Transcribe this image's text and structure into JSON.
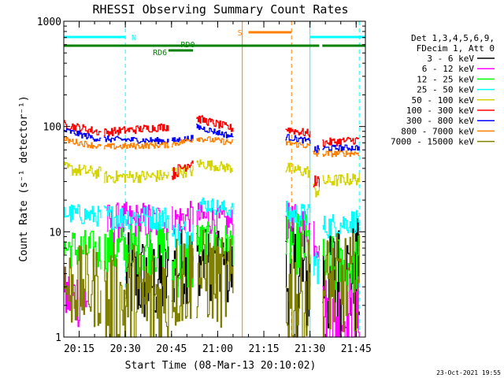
{
  "chart_data": {
    "type": "line",
    "title": "RHESSI Observing Summary Count Rates",
    "xlabel": "Start Time (08-Mar-13 20:10:02)",
    "ylabel": "Count Rate (s⁻¹ detector⁻¹)",
    "y_scale": "log",
    "ylim": [
      1,
      1000
    ],
    "xlim": [
      "20:10",
      "21:48"
    ],
    "x_ticks": [
      "20:15",
      "20:30",
      "20:45",
      "21:00",
      "21:15",
      "21:30",
      "21:45"
    ],
    "y_ticks": [
      "1",
      "10",
      "100",
      "1000"
    ],
    "legend_header": [
      "Det 1,3,4,5,6,9,",
      "FDecim 1, Att 0"
    ],
    "legend_position": "right",
    "footer_date": "23-Oct-2021 19:55",
    "annotations": {
      "N": "N",
      "S": "S",
      "RD0": "RD0",
      "RD6": "RD6"
    },
    "flag_bars": [
      {
        "label": "N",
        "color": "#00ffff",
        "segments": [
          [
            "20:10",
            "20:30"
          ],
          [
            "21:30",
            "21:48"
          ]
        ]
      },
      {
        "label": "S",
        "color": "#ff8000",
        "segments": [
          [
            "21:10",
            "21:24"
          ]
        ]
      },
      {
        "label": "RD0",
        "color": "#008000",
        "segments": [
          [
            "20:10",
            "21:31"
          ],
          [
            "21:31",
            "21:33"
          ],
          [
            "21:34",
            "21:48"
          ]
        ]
      },
      {
        "label": "RD6",
        "color": "#008000",
        "segments": [
          [
            "20:44",
            "20:52"
          ]
        ]
      }
    ],
    "vlines": [
      {
        "time": "20:10",
        "color": "#00ffff",
        "style": "solid"
      },
      {
        "time": "20:30",
        "color": "#00ffff",
        "style": "dashed"
      },
      {
        "time": "21:08",
        "color": "#ff8000",
        "style": "solid"
      },
      {
        "time": "21:24",
        "color": "#ff8000",
        "style": "dashed"
      },
      {
        "time": "21:30",
        "color": "#00ffff",
        "style": "solid"
      },
      {
        "time": "21:46",
        "color": "#00ffff",
        "style": "dashed"
      }
    ],
    "series": [
      {
        "name": "3 - 6 keV",
        "color": "#000000",
        "segments": [
          {
            "x": [
              "20:30",
              "20:44"
            ],
            "y": [
              3.5,
              3.5
            ],
            "noise": 0.45
          },
          {
            "x": [
              "20:45",
              "20:52"
            ],
            "y": [
              4.5,
              5.5
            ],
            "noise": 0.4
          },
          {
            "x": [
              "20:53",
              "21:05"
            ],
            "y": [
              5.5,
              4.0
            ],
            "noise": 0.35
          },
          {
            "x": [
              "21:22",
              "21:30"
            ],
            "y": [
              3.5,
              3.5
            ],
            "noise": 0.6
          },
          {
            "x": [
              "21:34",
              "21:46"
            ],
            "y": [
              3.5,
              3.5
            ],
            "noise": 0.6
          }
        ]
      },
      {
        "name": "6 - 12 keV",
        "color": "#ff00ff",
        "segments": [
          {
            "x": [
              "20:10",
              "20:18"
            ],
            "y": [
              2.4,
              2.4
            ],
            "noise": 0.3
          },
          {
            "x": [
              "20:24",
              "20:44"
            ],
            "y": [
              12,
              12.5
            ],
            "noise": 0.2
          },
          {
            "x": [
              "20:45",
              "20:52"
            ],
            "y": [
              13,
              14
            ],
            "noise": 0.15
          },
          {
            "x": [
              "20:53",
              "21:05"
            ],
            "y": [
              14,
              12
            ],
            "noise": 0.15
          },
          {
            "x": [
              "21:22",
              "21:30"
            ],
            "y": [
              12,
              11
            ],
            "noise": 0.2
          },
          {
            "x": [
              "21:31",
              "21:33"
            ],
            "y": [
              10,
              10
            ],
            "noise": 0.3
          },
          {
            "x": [
              "21:34",
              "21:46"
            ],
            "y": [
              1.6,
              1.6
            ],
            "noise": 0.4
          }
        ]
      },
      {
        "name": "12 - 25 keV",
        "color": "#00ff00",
        "segments": [
          {
            "x": [
              "20:10",
              "20:22"
            ],
            "y": [
              7.0,
              6.5
            ],
            "noise": 0.2
          },
          {
            "x": [
              "20:23",
              "20:44"
            ],
            "y": [
              6.5,
              7.0
            ],
            "noise": 0.25
          },
          {
            "x": [
              "20:45",
              "20:52"
            ],
            "y": [
              4.5,
              5.0
            ],
            "noise": 0.3
          },
          {
            "x": [
              "20:53",
              "21:05"
            ],
            "y": [
              8.0,
              7.5
            ],
            "noise": 0.2
          },
          {
            "x": [
              "21:22",
              "21:30"
            ],
            "y": [
              8.0,
              7.5
            ],
            "noise": 0.3
          },
          {
            "x": [
              "21:34",
              "21:46"
            ],
            "y": [
              4.5,
              5.0
            ],
            "noise": 0.3
          }
        ]
      },
      {
        "name": "25 - 50 keV",
        "color": "#00ffff",
        "segments": [
          {
            "x": [
              "20:10",
              "20:22"
            ],
            "y": [
              15,
              14
            ],
            "noise": 0.1
          },
          {
            "x": [
              "20:23",
              "20:44"
            ],
            "y": [
              14,
              13.5
            ],
            "noise": 0.12
          },
          {
            "x": [
              "20:45",
              "20:52"
            ],
            "y": [
              9,
              10
            ],
            "noise": 0.15
          },
          {
            "x": [
              "20:53",
              "21:05"
            ],
            "y": [
              19,
              16
            ],
            "noise": 0.08
          },
          {
            "x": [
              "21:22",
              "21:30"
            ],
            "y": [
              15,
              14
            ],
            "noise": 0.12
          },
          {
            "x": [
              "21:31",
              "21:33"
            ],
            "y": [
              5,
              5
            ],
            "noise": 0.2
          },
          {
            "x": [
              "21:34",
              "21:46"
            ],
            "y": [
              11,
              13
            ],
            "noise": 0.12
          }
        ]
      },
      {
        "name": "50 - 100 keV",
        "color": "#d4d400",
        "segments": [
          {
            "x": [
              "20:10",
              "20:22"
            ],
            "y": [
              40,
              36
            ],
            "noise": 0.06
          },
          {
            "x": [
              "20:23",
              "20:44"
            ],
            "y": [
              33,
              34
            ],
            "noise": 0.06
          },
          {
            "x": [
              "20:45",
              "20:52"
            ],
            "y": [
              37,
              38
            ],
            "noise": 0.06
          },
          {
            "x": [
              "20:53",
              "21:05"
            ],
            "y": [
              45,
              40
            ],
            "noise": 0.05
          },
          {
            "x": [
              "21:22",
              "21:30"
            ],
            "y": [
              40,
              37
            ],
            "noise": 0.06
          },
          {
            "x": [
              "21:31",
              "21:33"
            ],
            "y": [
              25,
              25
            ],
            "noise": 0.08
          },
          {
            "x": [
              "21:34",
              "21:46"
            ],
            "y": [
              30,
              32
            ],
            "noise": 0.06
          }
        ]
      },
      {
        "name": "100 - 300 keV",
        "color": "#ff0000",
        "segments": [
          {
            "x": [
              "20:10",
              "20:22"
            ],
            "y": [
              105,
              88
            ],
            "noise": 0.04
          },
          {
            "x": [
              "20:23",
              "20:44"
            ],
            "y": [
              88,
              100
            ],
            "noise": 0.04
          },
          {
            "x": [
              "20:45",
              "20:52"
            ],
            "y": [
              35,
              48
            ],
            "noise": 0.06
          },
          {
            "x": [
              "20:53",
              "21:05"
            ],
            "y": [
              120,
              95
            ],
            "noise": 0.04
          },
          {
            "x": [
              "21:22",
              "21:30"
            ],
            "y": [
              95,
              85
            ],
            "noise": 0.04
          },
          {
            "x": [
              "21:31",
              "21:33"
            ],
            "y": [
              30,
              30
            ],
            "noise": 0.06
          },
          {
            "x": [
              "21:34",
              "21:46"
            ],
            "y": [
              70,
              75
            ],
            "noise": 0.04
          }
        ]
      },
      {
        "name": "300 - 800 keV",
        "color": "#0000ff",
        "segments": [
          {
            "x": [
              "20:10",
              "20:22"
            ],
            "y": [
              92,
              75
            ],
            "noise": 0.03
          },
          {
            "x": [
              "20:23",
              "20:44"
            ],
            "y": [
              76,
              73
            ],
            "noise": 0.03
          },
          {
            "x": [
              "20:45",
              "20:52"
            ],
            "y": [
              73,
              78
            ],
            "noise": 0.03
          },
          {
            "x": [
              "20:53",
              "21:05"
            ],
            "y": [
              100,
              80
            ],
            "noise": 0.03
          },
          {
            "x": [
              "21:22",
              "21:30"
            ],
            "y": [
              80,
              72
            ],
            "noise": 0.03
          },
          {
            "x": [
              "21:31",
              "21:33"
            ],
            "y": [
              60,
              60
            ],
            "noise": 0.04
          },
          {
            "x": [
              "21:34",
              "21:46"
            ],
            "y": [
              62,
              63
            ],
            "noise": 0.03
          }
        ]
      },
      {
        "name": "800 - 7000 keV",
        "color": "#ff8000",
        "segments": [
          {
            "x": [
              "20:10",
              "20:22"
            ],
            "y": [
              75,
              64
            ],
            "noise": 0.03
          },
          {
            "x": [
              "20:23",
              "20:44"
            ],
            "y": [
              64,
              67
            ],
            "noise": 0.03
          },
          {
            "x": [
              "20:45",
              "20:52"
            ],
            "y": [
              68,
              76
            ],
            "noise": 0.03
          },
          {
            "x": [
              "20:53",
              "21:05"
            ],
            "y": [
              78,
              70
            ],
            "noise": 0.03
          },
          {
            "x": [
              "21:22",
              "21:30"
            ],
            "y": [
              70,
              65
            ],
            "noise": 0.03
          },
          {
            "x": [
              "21:31",
              "21:33"
            ],
            "y": [
              55,
              55
            ],
            "noise": 0.04
          },
          {
            "x": [
              "21:34",
              "21:46"
            ],
            "y": [
              55,
              56
            ],
            "noise": 0.03
          }
        ]
      },
      {
        "name": "7000 - 15000 keV",
        "color": "#808000",
        "segments": [
          {
            "x": [
              "20:10",
              "20:22"
            ],
            "y": [
              3.0,
              3.0
            ],
            "noise": 0.4
          },
          {
            "x": [
              "20:23",
              "20:44"
            ],
            "y": [
              2.0,
              2.2
            ],
            "noise": 0.6
          },
          {
            "x": [
              "20:45",
              "20:52"
            ],
            "y": [
              3.2,
              4.0
            ],
            "noise": 0.5
          },
          {
            "x": [
              "20:53",
              "21:05"
            ],
            "y": [
              4.0,
              3.0
            ],
            "noise": 0.45
          },
          {
            "x": [
              "21:22",
              "21:30"
            ],
            "y": [
              2.5,
              2.5
            ],
            "noise": 0.6
          },
          {
            "x": [
              "21:34",
              "21:46"
            ],
            "y": [
              3.0,
              3.2
            ],
            "noise": 0.5
          }
        ]
      }
    ]
  }
}
